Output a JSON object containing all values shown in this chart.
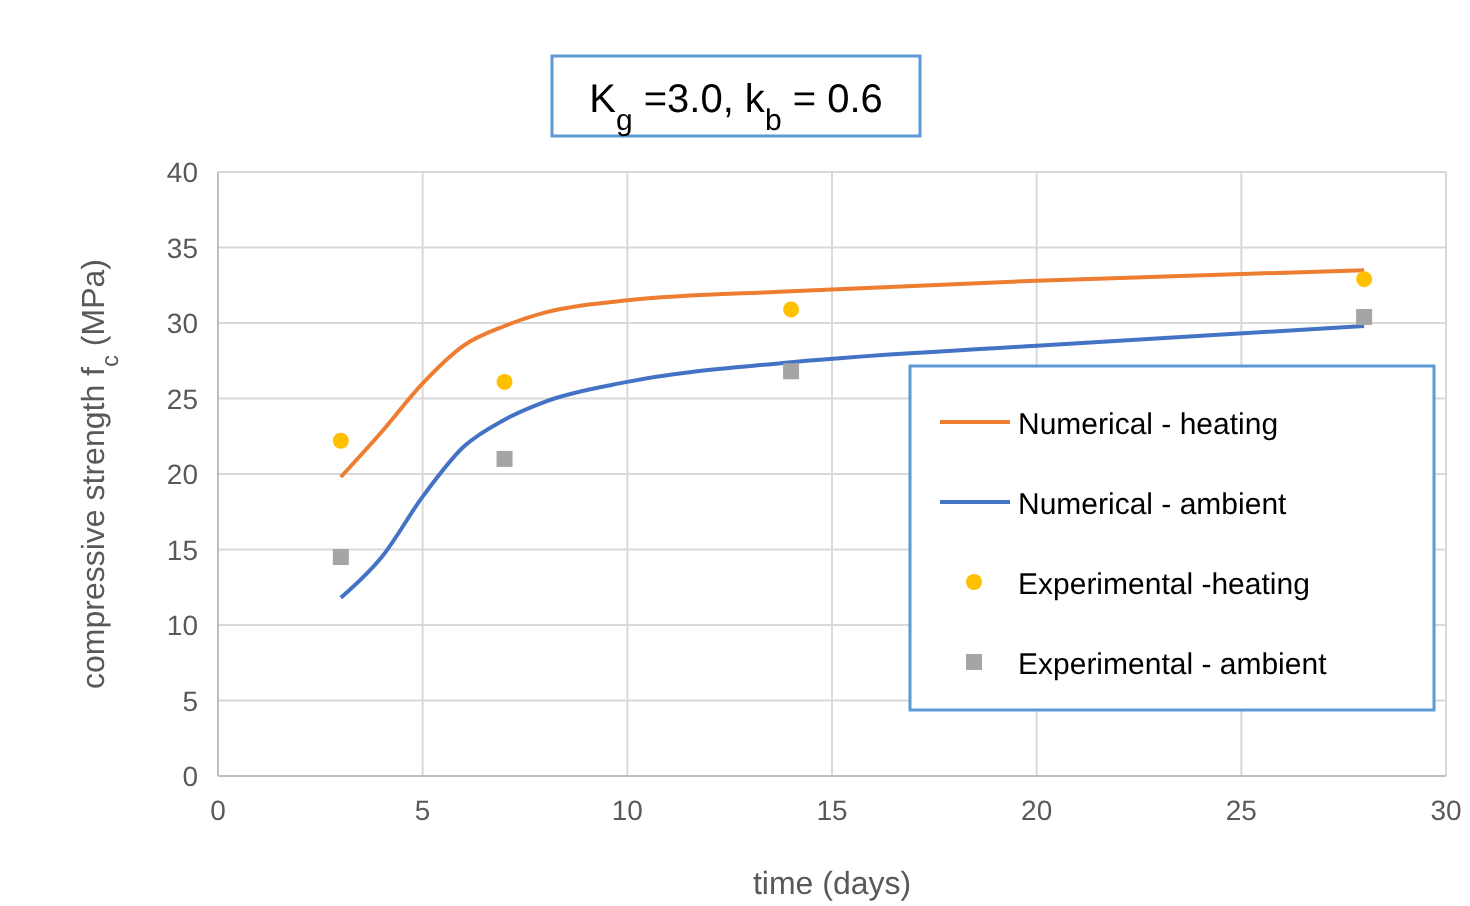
{
  "chart_data": {
    "type": "line",
    "title": "K$_{g}$ =3.0, k$_{b}$ = 0.6",
    "xlabel": "time (days)",
    "ylabel": "compressive strength f$_{c}$ (MPa)",
    "xlim": [
      0,
      30
    ],
    "xticks": [
      0,
      5,
      10,
      15,
      20,
      25,
      30
    ],
    "ylim": [
      0,
      40
    ],
    "yticks": [
      0,
      5,
      10,
      15,
      20,
      25,
      30,
      35,
      40
    ],
    "grid": true,
    "legend": "bottom right",
    "series": [
      {
        "name": "Numerical - heating",
        "color": "#ed7d31",
        "type": "line",
        "marker": "none",
        "x": [
          3,
          4,
          5,
          6,
          7,
          8,
          10,
          14,
          20,
          28
        ],
        "values": [
          19.8,
          22.8,
          26,
          28.5,
          29.8,
          30.7,
          31.5,
          32.1,
          32.8,
          33.5
        ]
      },
      {
        "name": "Numerical - ambient",
        "color": "#4472c4",
        "type": "line",
        "marker": "none",
        "x": [
          3,
          4,
          5,
          6,
          7,
          8,
          10,
          14,
          20,
          28
        ],
        "values": [
          11.8,
          14.5,
          18.5,
          21.8,
          23.6,
          24.8,
          26.1,
          27.4,
          28.5,
          29.8
        ]
      },
      {
        "name": "Experimental -heating",
        "color": "#ffc000",
        "type": "scatter",
        "marker": "circle",
        "x": [
          3,
          7,
          14,
          28
        ],
        "values": [
          22.2,
          26.1,
          30.9,
          32.9
        ]
      },
      {
        "name": "Experimental - ambient",
        "color": "#a5a5a5",
        "type": "scatter",
        "marker": "square",
        "x": [
          3,
          7,
          14,
          28
        ],
        "values": [
          14.5,
          21,
          26.8,
          30.4
        ]
      }
    ]
  }
}
